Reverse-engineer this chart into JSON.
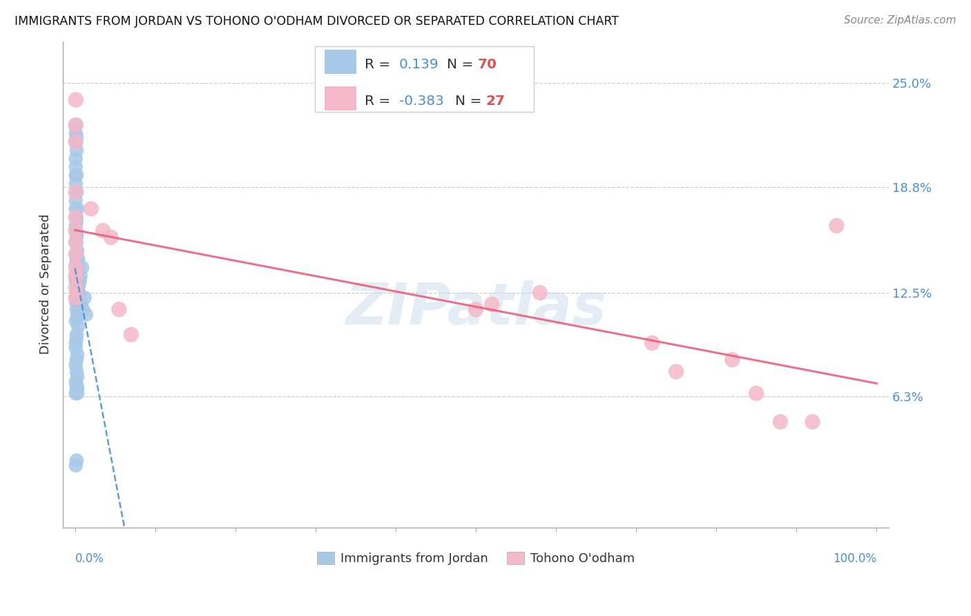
{
  "title": "IMMIGRANTS FROM JORDAN VS TOHONO O'ODHAM DIVORCED OR SEPARATED CORRELATION CHART",
  "source": "Source: ZipAtlas.com",
  "ylabel": "Divorced or Separated",
  "legend_blue_r": "0.139",
  "legend_blue_n": "70",
  "legend_pink_r": "-0.383",
  "legend_pink_n": "27",
  "blue_color": "#a8c8e8",
  "pink_color": "#f4b8c8",
  "blue_line_color": "#5090d0",
  "pink_line_color": "#e86080",
  "ytick_values": [
    0.063,
    0.125,
    0.188,
    0.25
  ],
  "ytick_labels": [
    "6.3%",
    "12.5%",
    "18.8%",
    "25.0%"
  ],
  "blue_x": [
    0.001,
    0.001,
    0.002,
    0.002,
    0.002,
    0.003,
    0.003,
    0.003,
    0.004,
    0.004,
    0.001,
    0.001,
    0.002,
    0.002,
    0.002,
    0.003,
    0.003,
    0.004,
    0.004,
    0.001,
    0.001,
    0.002,
    0.002,
    0.003,
    0.001,
    0.001,
    0.002,
    0.002,
    0.001,
    0.001,
    0.002,
    0.003,
    0.001,
    0.001,
    0.002,
    0.001,
    0.002,
    0.001,
    0.002,
    0.001,
    0.002,
    0.001,
    0.003,
    0.002,
    0.001,
    0.002,
    0.003,
    0.001,
    0.002,
    0.003,
    0.005,
    0.004,
    0.005,
    0.006,
    0.007,
    0.008,
    0.009,
    0.01,
    0.012,
    0.014,
    0.001,
    0.001,
    0.002,
    0.002,
    0.001,
    0.002,
    0.003,
    0.001,
    0.002,
    0.001
  ],
  "blue_y": [
    0.135,
    0.12,
    0.13,
    0.115,
    0.125,
    0.14,
    0.11,
    0.128,
    0.145,
    0.118,
    0.142,
    0.108,
    0.136,
    0.122,
    0.148,
    0.112,
    0.138,
    0.125,
    0.105,
    0.132,
    0.155,
    0.16,
    0.145,
    0.15,
    0.165,
    0.17,
    0.158,
    0.168,
    0.175,
    0.18,
    0.185,
    0.175,
    0.19,
    0.195,
    0.185,
    0.2,
    0.195,
    0.205,
    0.1,
    0.095,
    0.098,
    0.092,
    0.088,
    0.085,
    0.082,
    0.078,
    0.075,
    0.072,
    0.068,
    0.065,
    0.13,
    0.128,
    0.125,
    0.132,
    0.135,
    0.118,
    0.14,
    0.115,
    0.122,
    0.112,
    0.215,
    0.22,
    0.21,
    0.218,
    0.225,
    0.07,
    0.068,
    0.065,
    0.025,
    0.022
  ],
  "pink_x": [
    0.001,
    0.001,
    0.001,
    0.001,
    0.001,
    0.001,
    0.001,
    0.001,
    0.001,
    0.001,
    0.001,
    0.001,
    0.02,
    0.035,
    0.045,
    0.055,
    0.07,
    0.5,
    0.52,
    0.58,
    0.72,
    0.75,
    0.82,
    0.85,
    0.88,
    0.92,
    0.95
  ],
  "pink_y": [
    0.24,
    0.225,
    0.215,
    0.185,
    0.17,
    0.162,
    0.155,
    0.148,
    0.14,
    0.135,
    0.128,
    0.122,
    0.175,
    0.162,
    0.158,
    0.115,
    0.1,
    0.115,
    0.118,
    0.125,
    0.095,
    0.078,
    0.085,
    0.065,
    0.048,
    0.048,
    0.165
  ],
  "xlim": [
    0.0,
    1.0
  ],
  "ylim": [
    0.0,
    0.27
  ]
}
